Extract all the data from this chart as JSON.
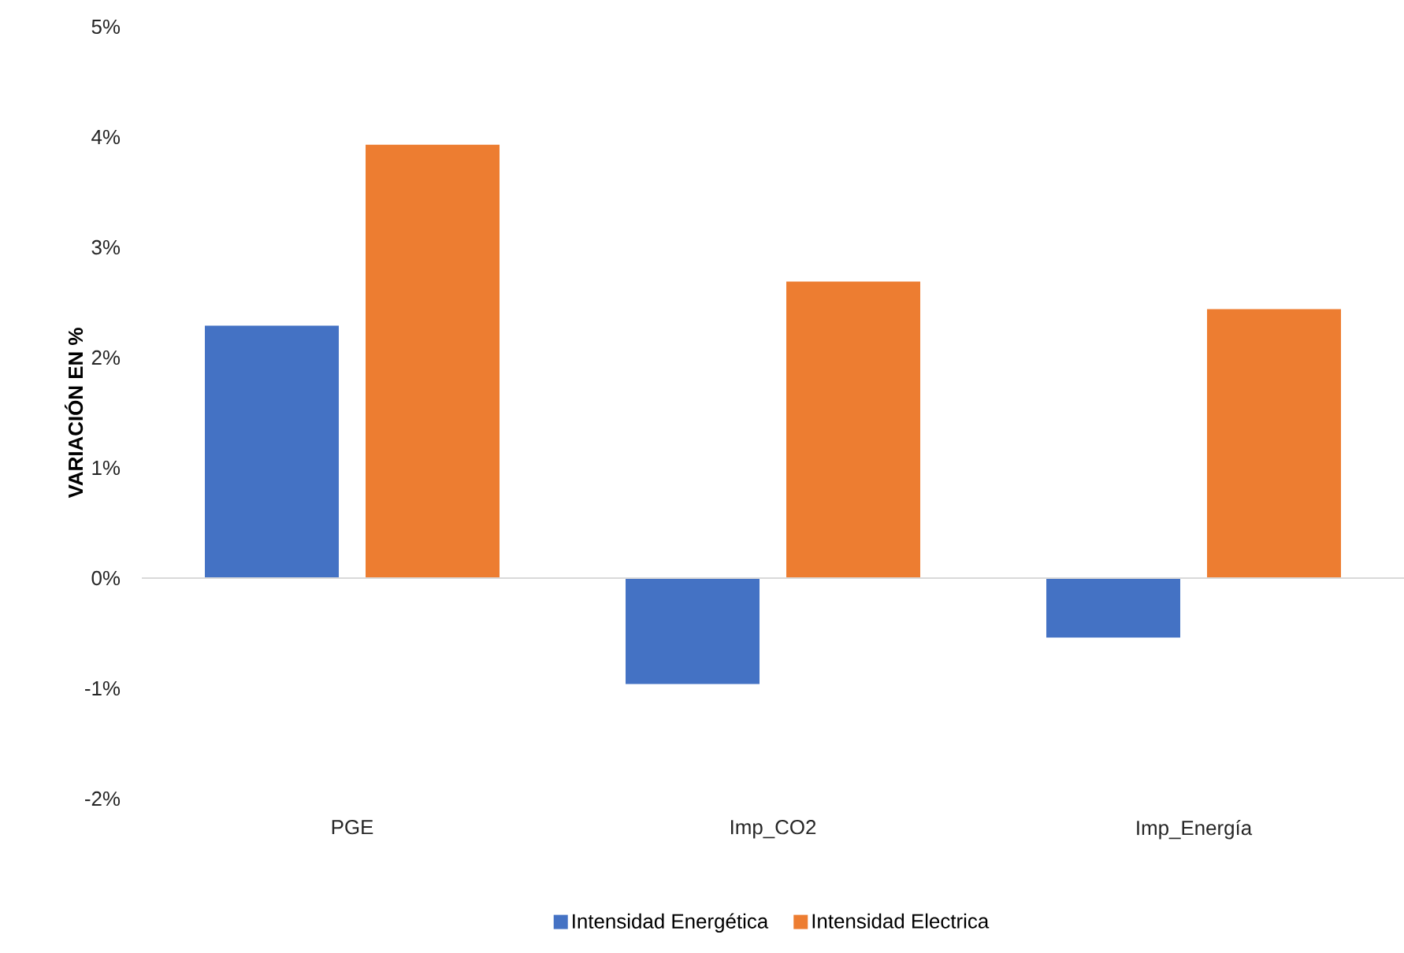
{
  "chart_data": {
    "type": "bar",
    "ylabel": "VARIACIÓN EN %",
    "categories": [
      "PGE",
      "Imp_CO2",
      "Imp_Energía"
    ],
    "series": [
      {
        "name": "Intensidad Energética",
        "color": "#4472c4",
        "values": [
          2.29,
          -0.96,
          -0.54
        ]
      },
      {
        "name": "Intensidad Electrica",
        "color": "#ed7d31",
        "values": [
          3.93,
          2.69,
          2.44
        ]
      }
    ],
    "ylim": [
      -2,
      5
    ],
    "yticks": [
      {
        "value": -2,
        "label": "-2%"
      },
      {
        "value": -1,
        "label": "-1%"
      },
      {
        "value": 0,
        "label": "0%"
      },
      {
        "value": 1,
        "label": "1%"
      },
      {
        "value": 2,
        "label": "2%"
      },
      {
        "value": 3,
        "label": "3%"
      },
      {
        "value": 4,
        "label": "4%"
      },
      {
        "value": 5,
        "label": "5%"
      }
    ],
    "ref_lines": [
      {
        "axis": "y",
        "value": 0,
        "color": "#d9d9d9"
      }
    ],
    "legend": "bottom"
  }
}
